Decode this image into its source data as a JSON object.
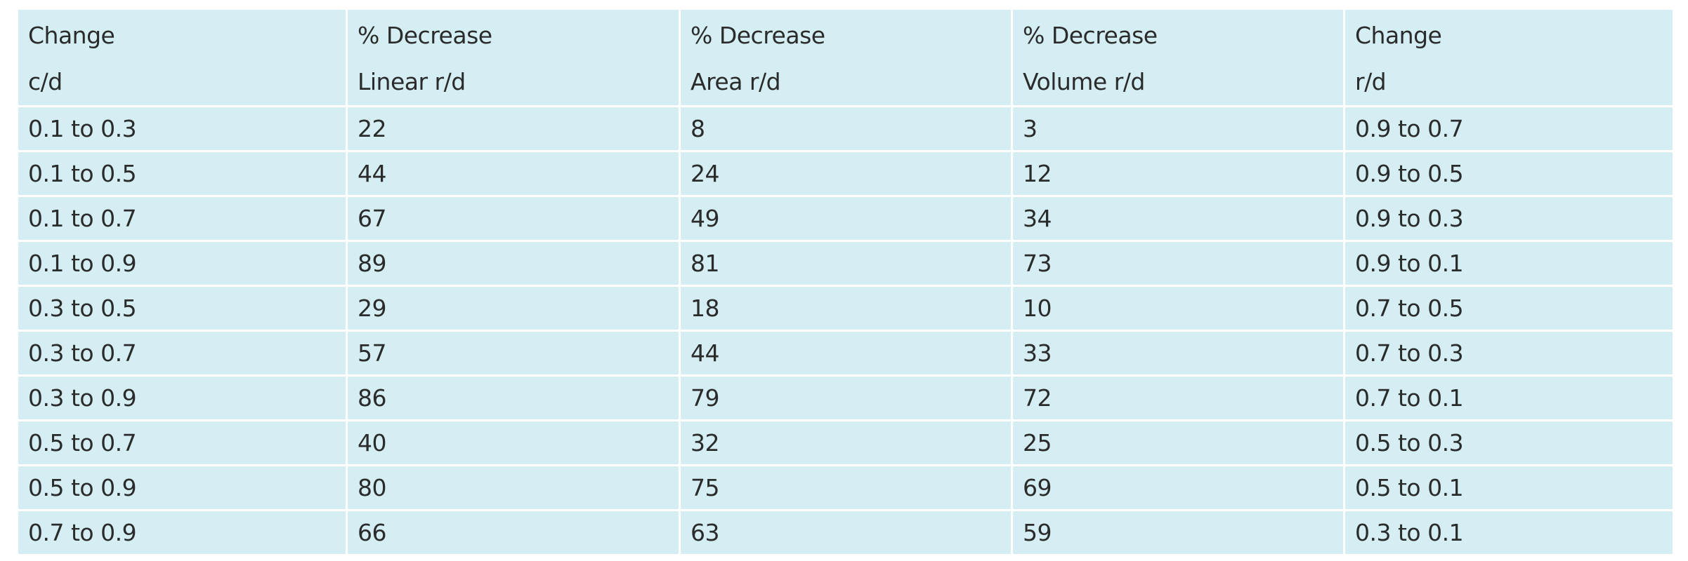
{
  "table": {
    "headers": [
      {
        "line1": "Change",
        "line2": "c/d"
      },
      {
        "line1": "% Decrease",
        "line2": "Linear r/d"
      },
      {
        "line1": "% Decrease",
        "line2": "Area r/d"
      },
      {
        "line1": "% Decrease",
        "line2": "Volume r/d"
      },
      {
        "line1": "Change",
        "line2": "r/d"
      }
    ],
    "rows": [
      [
        "0.1 to 0.3",
        "22",
        "8",
        "3",
        "0.9 to 0.7"
      ],
      [
        "0.1 to 0.5",
        "44",
        "24",
        "12",
        "0.9 to 0.5"
      ],
      [
        "0.1 to 0.7",
        "67",
        "49",
        "34",
        "0.9 to 0.3"
      ],
      [
        "0.1 to 0.9",
        "89",
        "81",
        "73",
        "0.9 to 0.1"
      ],
      [
        "0.3 to 0.5",
        "29",
        "18",
        "10",
        "0.7 to 0.5"
      ],
      [
        "0.3 to 0.7",
        "57",
        "44",
        "33",
        "0.7 to 0.3"
      ],
      [
        "0.3 to 0.9",
        "86",
        "79",
        "72",
        "0.7 to 0.1"
      ],
      [
        "0.5 to 0.7",
        "40",
        "32",
        "25",
        "0.5 to 0.3"
      ],
      [
        "0.5 to 0.9",
        "80",
        "75",
        "69",
        "0.5 to 0.1"
      ],
      [
        "0.7 to 0.9",
        "66",
        "63",
        "59",
        "0.3 to 0.1"
      ]
    ]
  },
  "colors": {
    "cell_background": "#d4eef4",
    "grid_lines": "#ffffff",
    "text": "#2b2b2b"
  }
}
